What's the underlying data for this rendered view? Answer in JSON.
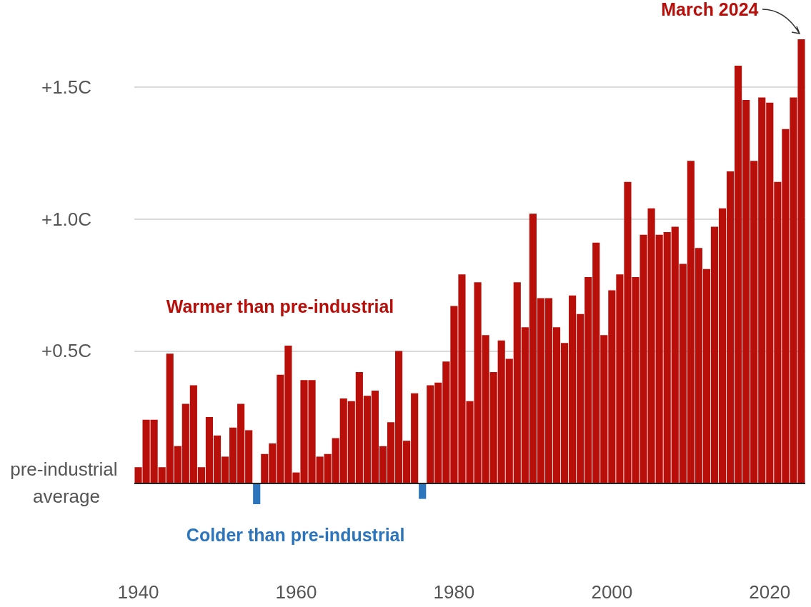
{
  "chart_data": {
    "type": "bar",
    "categories": [
      "1940",
      null,
      null,
      null,
      null,
      null,
      null,
      null,
      null,
      null,
      null,
      null,
      null,
      null,
      null,
      null,
      null,
      null,
      null,
      null,
      "1960",
      null,
      null,
      null,
      null,
      null,
      null,
      null,
      null,
      null,
      null,
      null,
      null,
      null,
      null,
      null,
      null,
      null,
      null,
      null,
      "1980",
      null,
      null,
      null,
      null,
      null,
      null,
      null,
      null,
      null,
      null,
      null,
      null,
      null,
      null,
      null,
      null,
      null,
      null,
      null,
      "2000",
      null,
      null,
      null,
      null,
      null,
      null,
      null,
      null,
      null,
      null,
      null,
      null,
      null,
      null,
      null,
      null,
      null,
      null,
      null,
      "2020",
      null,
      null,
      null,
      null
    ],
    "values": [
      0.06,
      0.24,
      0.24,
      0.06,
      0.49,
      0.14,
      0.3,
      0.37,
      0.06,
      0.25,
      0.18,
      0.1,
      0.21,
      0.3,
      0.2,
      -0.08,
      0.11,
      0.15,
      0.41,
      0.52,
      0.04,
      0.39,
      0.39,
      0.1,
      0.11,
      0.17,
      0.32,
      0.31,
      0.42,
      0.33,
      0.35,
      0.14,
      0.23,
      0.5,
      0.16,
      0.34,
      -0.06,
      0.37,
      0.38,
      0.46,
      0.67,
      0.79,
      0.31,
      0.76,
      0.56,
      0.42,
      0.54,
      0.47,
      0.76,
      0.59,
      1.02,
      0.7,
      0.7,
      0.59,
      0.53,
      0.71,
      0.64,
      0.78,
      0.91,
      0.56,
      0.73,
      0.79,
      1.14,
      0.78,
      0.94,
      1.04,
      0.94,
      0.95,
      0.97,
      0.83,
      1.22,
      0.89,
      0.81,
      0.97,
      1.04,
      1.18,
      1.58,
      1.45,
      1.22,
      1.46,
      1.44,
      1.14,
      1.34,
      1.46,
      1.68
    ],
    "colors": [
      "#b80f0a",
      "#b80f0a",
      "#b80f0a",
      "#b80f0a",
      "#b80f0a",
      "#b80f0a",
      "#b80f0a",
      "#b80f0a",
      "#b80f0a",
      "#b80f0a",
      "#b80f0a",
      "#b80f0a",
      "#b80f0a",
      "#b80f0a",
      "#b80f0a",
      "#2c74bc",
      "#b80f0a",
      "#b80f0a",
      "#b80f0a",
      "#b80f0a",
      "#b80f0a",
      "#b80f0a",
      "#b80f0a",
      "#b80f0a",
      "#b80f0a",
      "#b80f0a",
      "#b80f0a",
      "#b80f0a",
      "#b80f0a",
      "#b80f0a",
      "#b80f0a",
      "#b80f0a",
      "#b80f0a",
      "#b80f0a",
      "#b80f0a",
      "#b80f0a",
      "#2c74bc",
      "#b80f0a",
      "#b80f0a",
      "#b80f0a",
      "#b80f0a",
      "#b80f0a",
      "#b80f0a",
      "#b80f0a",
      "#b80f0a",
      "#b80f0a",
      "#b80f0a",
      "#b80f0a",
      "#b80f0a",
      "#b80f0a",
      "#b80f0a",
      "#b80f0a",
      "#b80f0a",
      "#b80f0a",
      "#b80f0a",
      "#b80f0a",
      "#b80f0a",
      "#b80f0a",
      "#b80f0a",
      "#b80f0a",
      "#b80f0a",
      "#b80f0a",
      "#b80f0a",
      "#b80f0a",
      "#b80f0a",
      "#b80f0a",
      "#b80f0a",
      "#b80f0a",
      "#b80f0a",
      "#b80f0a",
      "#b80f0a",
      "#b80f0a",
      "#b80f0a",
      "#b80f0a",
      "#b80f0a",
      "#b80f0a",
      "#b80f0a",
      "#b80f0a",
      "#b80f0a",
      "#b80f0a",
      "#b80f0a",
      "#b80f0a",
      "#b80f0a",
      "#b80f0a",
      "#b80f0a"
    ],
    "yticks": [
      {
        "value": 0,
        "label": "pre-industrial average"
      },
      {
        "value": 0.5,
        "label": "+0.5C"
      },
      {
        "value": 1,
        "label": "+1.0C"
      },
      {
        "value": 1.5,
        "label": "+1.5C"
      }
    ],
    "ylim": [
      -0.08,
      1.68
    ],
    "grid": "y",
    "ref_lines": [
      {
        "axis": "y",
        "value": 0,
        "color": "#222222"
      }
    ],
    "annotations": [
      "Warmer than pre-industrial",
      "Colder than pre-industrial",
      "March 2024"
    ]
  }
}
